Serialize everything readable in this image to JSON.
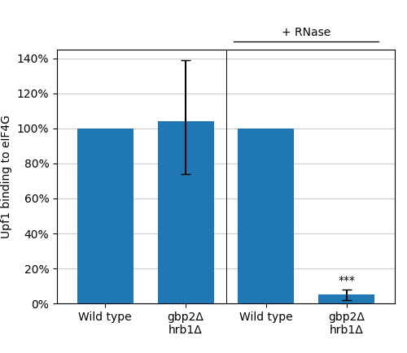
{
  "chart_data": {
    "type": "bar",
    "categories": [
      "Wild type",
      "gbp2Δ\nhrb1Δ",
      "Wild type",
      "gbp2Δ\nhrb1Δ"
    ],
    "values": [
      100,
      104,
      100,
      5
    ],
    "errors_up": [
      0,
      35,
      0,
      3
    ],
    "errors_dn": [
      0,
      30,
      0,
      3
    ],
    "ylabel": "Upf1 binding to eIF4G",
    "ylim": [
      0,
      145
    ],
    "yticks": [
      {
        "value": 0,
        "label": "0%"
      },
      {
        "value": 20,
        "label": "20%"
      },
      {
        "value": 40,
        "label": "40%"
      },
      {
        "value": 60,
        "label": "60%"
      },
      {
        "value": 80,
        "label": "80%"
      },
      {
        "value": 100,
        "label": "100%"
      },
      {
        "value": 120,
        "label": "120%"
      },
      {
        "value": 140,
        "label": "140%"
      }
    ],
    "grid": true,
    "annotations": [
      {
        "text": "+ RNase",
        "categories": [
          2,
          3
        ]
      },
      {
        "text": "***",
        "category": 3
      }
    ]
  }
}
